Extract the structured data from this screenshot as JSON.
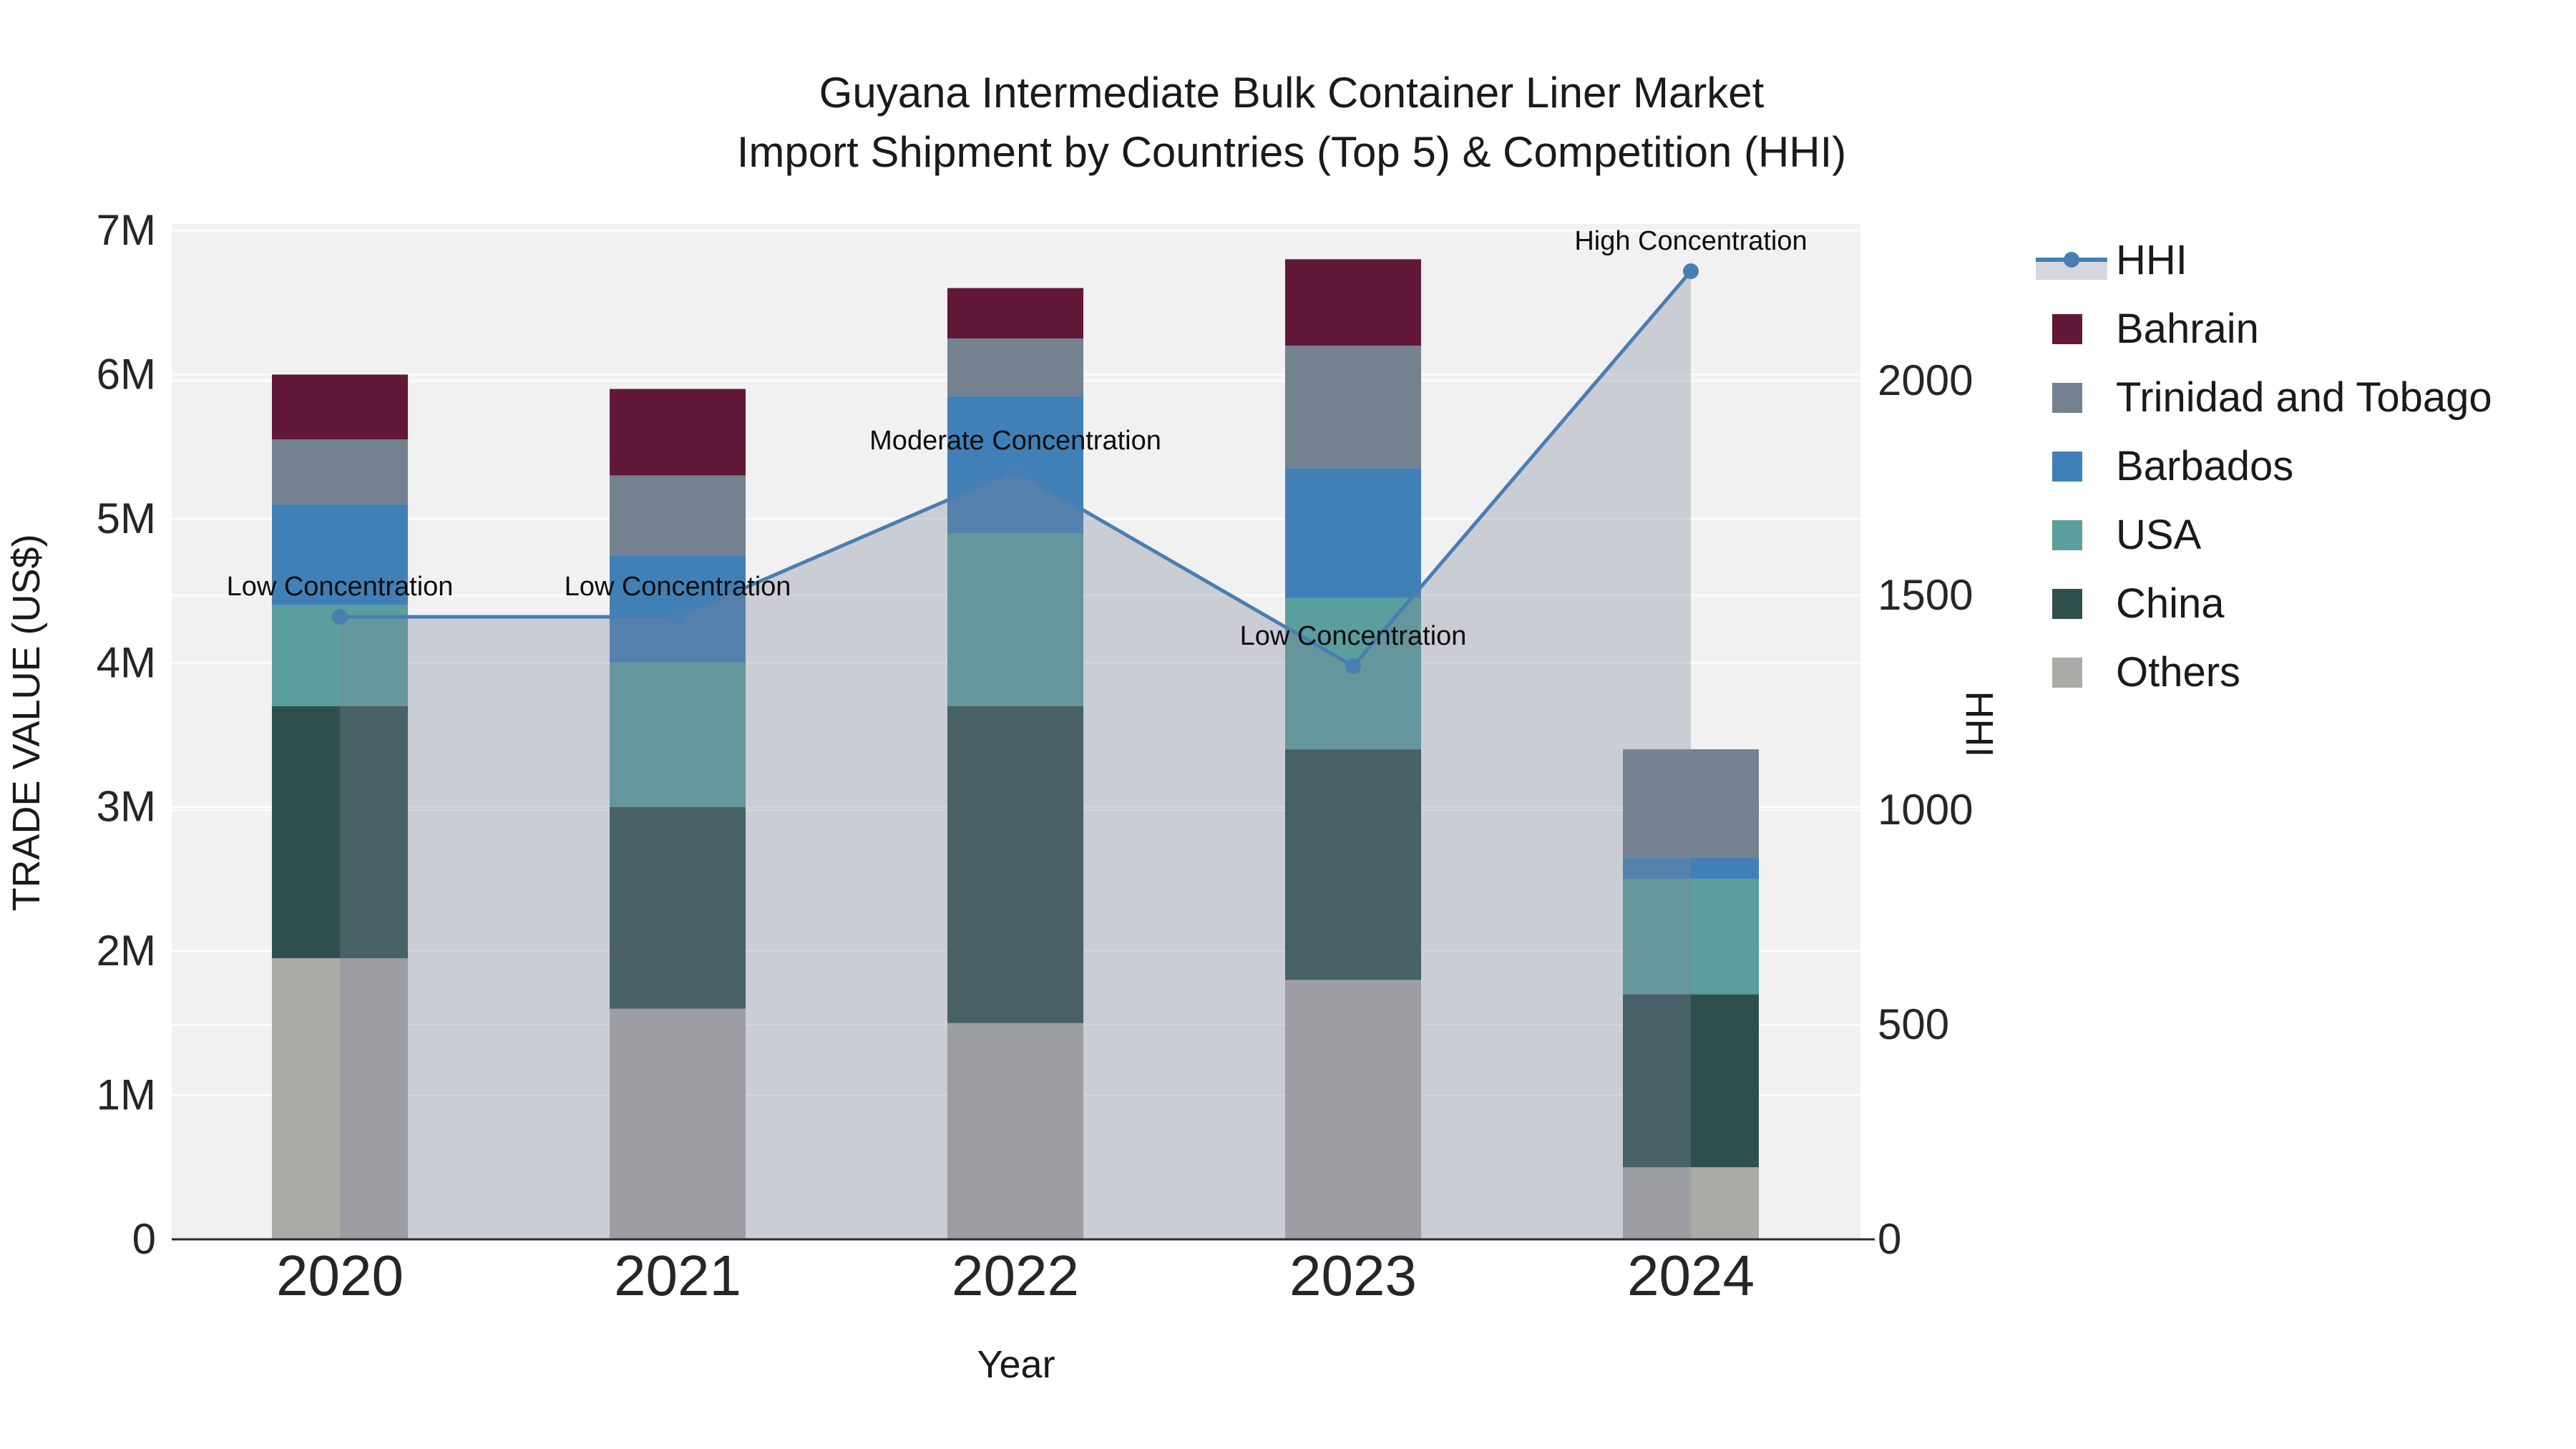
{
  "title": {
    "line1": "Guyana Intermediate Bulk Container Liner Market",
    "line2": "Import Shipment by Countries (Top 5) & Competition (HHI)"
  },
  "axes": {
    "x": {
      "label": "Year",
      "ticks": [
        "2020",
        "2021",
        "2022",
        "2023",
        "2024"
      ]
    },
    "y_left": {
      "label": "TRADE VALUE (US$)",
      "ticks": [
        "0",
        "1M",
        "2M",
        "3M",
        "4M",
        "5M",
        "6M",
        "7M"
      ],
      "range": [
        0,
        7000000
      ]
    },
    "y_right": {
      "label": "HHI",
      "ticks": [
        "0",
        "500",
        "1000",
        "1500",
        "2000"
      ],
      "range": [
        0,
        2365
      ]
    }
  },
  "legend": {
    "items": [
      {
        "label": "HHI",
        "kind": "line"
      },
      {
        "label": "Bahrain",
        "kind": "swatch",
        "color": "#611839"
      },
      {
        "label": "Trinidad and Tobago",
        "kind": "swatch",
        "color": "#74818E"
      },
      {
        "label": "Barbados",
        "kind": "swatch",
        "color": "#4180B7"
      },
      {
        "label": "USA",
        "kind": "swatch",
        "color": "#5A9E9E"
      },
      {
        "label": "China",
        "kind": "swatch",
        "color": "#2F4F4D"
      },
      {
        "label": "Others",
        "kind": "swatch",
        "color": "#ACAAA7"
      }
    ]
  },
  "annotations": [
    {
      "year": "2020",
      "text": "Low Concentration"
    },
    {
      "year": "2021",
      "text": "Low Concentration"
    },
    {
      "year": "2022",
      "text": "Moderate Concentration"
    },
    {
      "year": "2023",
      "text": "Low Concentration"
    },
    {
      "year": "2024",
      "text": "High Concentration"
    }
  ],
  "chart_data": {
    "type": "combo: stacked-bar + line (secondary axis)",
    "categories": [
      "2020",
      "2021",
      "2022",
      "2023",
      "2024"
    ],
    "stack_order_bottom_to_top": [
      "Others",
      "China",
      "USA",
      "Barbados",
      "Trinidad and Tobago",
      "Bahrain"
    ],
    "bar_series": [
      {
        "name": "Bahrain",
        "color": "#611839",
        "values": [
          450000,
          600000,
          350000,
          600000,
          0
        ]
      },
      {
        "name": "Trinidad and Tobago",
        "color": "#74818E",
        "values": [
          450000,
          550000,
          400000,
          850000,
          750000
        ]
      },
      {
        "name": "Barbados",
        "color": "#4180B7",
        "values": [
          700000,
          750000,
          950000,
          900000,
          150000
        ]
      },
      {
        "name": "USA",
        "color": "#5A9E9E",
        "values": [
          700000,
          1000000,
          1200000,
          1050000,
          800000
        ]
      },
      {
        "name": "China",
        "color": "#2F4F4D",
        "values": [
          1750000,
          1400000,
          2200000,
          1600000,
          1200000
        ]
      },
      {
        "name": "Others",
        "color": "#ACAAA7",
        "values": [
          1950000,
          1600000,
          1500000,
          1800000,
          500000
        ]
      }
    ],
    "bar_totals": [
      6000000,
      5900000,
      6600000,
      6800000,
      3400000
    ],
    "line_series": {
      "name": "HHI",
      "axis": "right",
      "values": [
        1450,
        1450,
        1790,
        1335,
        2255
      ]
    },
    "xlabel": "Year",
    "ylabel_left": "TRADE VALUE (US$)",
    "ylabel_right": "HHI",
    "ylim_left": [
      0,
      7000000
    ],
    "ylim_right": [
      0,
      2365
    ],
    "grid": "horizontal white gridlines at 1M (left axis) and 500 (right axis) steps",
    "legend_position": "right-outside-top",
    "colors": {
      "hhi_line": "#4A7EB2",
      "hhi_area_fill": "rgba(125,134,155,0.33)",
      "plot_background": "#F1F1F1",
      "gridline": "#FFFFFF",
      "axis_line": "#2B2B2B"
    }
  }
}
